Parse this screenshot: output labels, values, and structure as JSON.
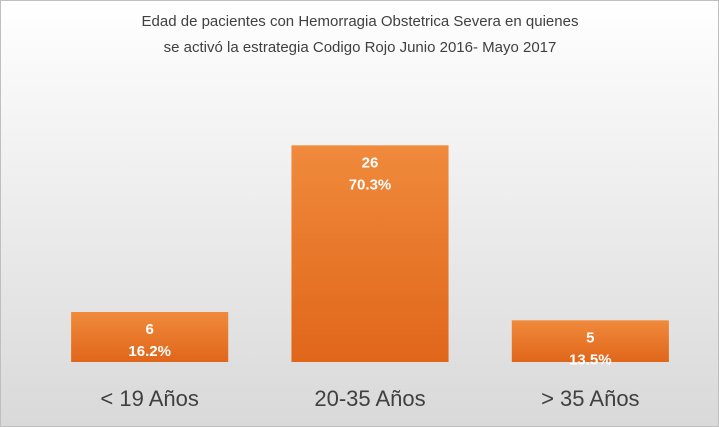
{
  "chart_data": {
    "type": "bar",
    "title": [
      "Edad de pacientes con Hemorragia Obstetrica Severa en quienes",
      "se activó la estrategia Codigo Rojo Junio 2016- Mayo 2017"
    ],
    "categories": [
      "< 19 Años",
      "20-35 Años",
      "> 35 Años"
    ],
    "values": [
      6,
      26,
      5
    ],
    "percentage_labels": [
      "16.2%",
      "70.3%",
      "13.5%"
    ],
    "color": "#e97326",
    "ylim": [
      0,
      30
    ]
  }
}
